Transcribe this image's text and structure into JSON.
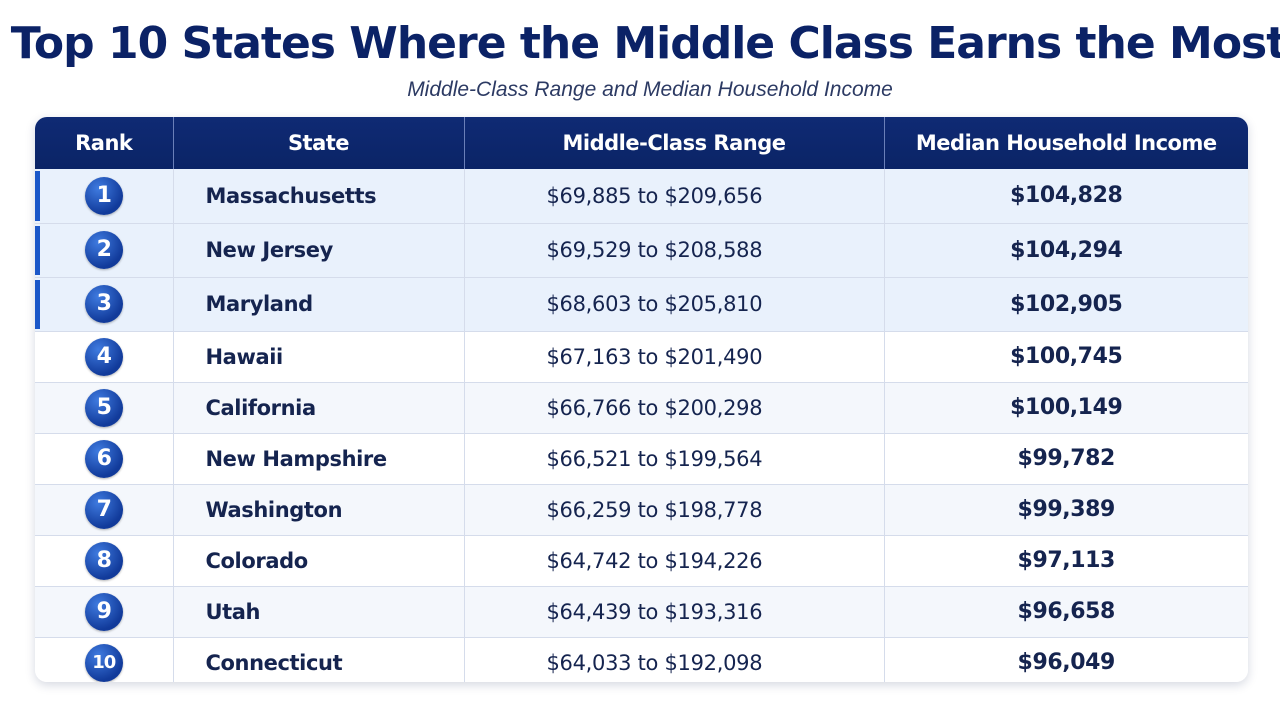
{
  "title": "Top 10 States Where the Middle Class Earns the Most",
  "subtitle": "Middle-Class Range and Median Household Income",
  "table": {
    "headers": {
      "rank": "Rank",
      "state": "State",
      "range": "Middle-Class Range",
      "income": "Median Household Income"
    },
    "rows": [
      {
        "rank": "1",
        "state": "Massachusetts",
        "range": "$69,885 to $209,656",
        "income": "$104,828"
      },
      {
        "rank": "2",
        "state": "New Jersey",
        "range": "$69,529 to $208,588",
        "income": "$104,294"
      },
      {
        "rank": "3",
        "state": "Maryland",
        "range": "$68,603 to $205,810",
        "income": "$102,905"
      },
      {
        "rank": "4",
        "state": "Hawaii",
        "range": "$67,163 to $201,490",
        "income": "$100,745"
      },
      {
        "rank": "5",
        "state": "California",
        "range": "$66,766 to $200,298",
        "income": "$100,149"
      },
      {
        "rank": "6",
        "state": "New Hampshire",
        "range": "$66,521 to $199,564",
        "income": "$99,782"
      },
      {
        "rank": "7",
        "state": "Washington",
        "range": "$66,259 to $198,778",
        "income": "$99,389"
      },
      {
        "rank": "8",
        "state": "Colorado",
        "range": "$64,742 to $194,226",
        "income": "$97,113"
      },
      {
        "rank": "9",
        "state": "Utah",
        "range": "$64,439 to $193,316",
        "income": "$96,658"
      },
      {
        "rank": "10",
        "state": "Connecticut",
        "range": "$64,033 to $192,098",
        "income": "$96,049"
      }
    ]
  },
  "colors": {
    "header_bg": "#0b2466",
    "title": "#0b2266",
    "badge": "#113a9a",
    "highlight_row": "#e9f1fc",
    "highlight_bar": "#1b57c8"
  }
}
